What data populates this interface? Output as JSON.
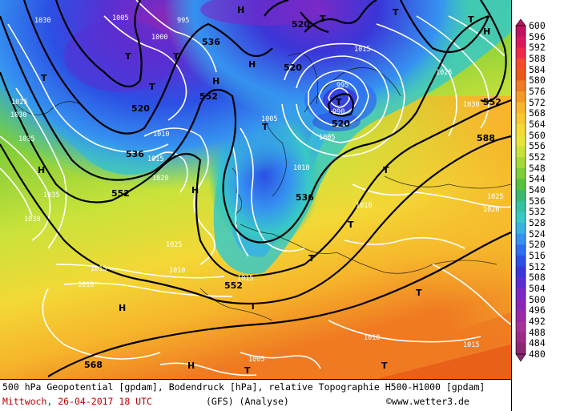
{
  "footer": {
    "line1": "500 hPa Geopotential [gpdam], Bodendruck [hPa], relative Topographie H500-H1000 [gpdam]",
    "date": "Mittwoch, 26-04-2017  18 UTC",
    "model": "(GFS)  (Analyse)",
    "copyright": "©www.wetter3.de"
  },
  "colorbar": {
    "ticks": [
      "600",
      "596",
      "592",
      "588",
      "584",
      "580",
      "576",
      "572",
      "568",
      "564",
      "560",
      "556",
      "552",
      "548",
      "544",
      "540",
      "536",
      "532",
      "528",
      "524",
      "520",
      "516",
      "512",
      "508",
      "504",
      "500",
      "496",
      "492",
      "488",
      "484",
      "480"
    ],
    "colors": [
      "#c0125e",
      "#d8195d",
      "#ee2a4b",
      "#f24a2a",
      "#e75a18",
      "#ef7a22",
      "#f39a25",
      "#f6b52b",
      "#f5c730",
      "#f3d836",
      "#e9e43a",
      "#c9e23a",
      "#a6d936",
      "#7fcd38",
      "#55c23e",
      "#3bb86e",
      "#35c2a0",
      "#38c9c6",
      "#38b2e3",
      "#3592f0",
      "#2e6ff0",
      "#2c50e4",
      "#3a36d8",
      "#5a2fd2",
      "#7a29c6",
      "#8b27b8",
      "#9a2aa8",
      "#a53296",
      "#9b2b84",
      "#8a2772"
    ]
  },
  "map_labels": {
    "heights_black": [
      "520",
      "536",
      "552",
      "520",
      "520",
      "552",
      "536",
      "552",
      "536",
      "552",
      "588",
      "520",
      "552",
      "568",
      "520"
    ],
    "pressure_white": [
      "1005",
      "995",
      "1000",
      "1030",
      "1025",
      "1030",
      "1035",
      "1015",
      "1010",
      "1005",
      "995",
      "990",
      "1005",
      "1010",
      "1015",
      "1025",
      "1030",
      "1035",
      "1020",
      "1030",
      "1025",
      "1015",
      "1010",
      "1015",
      "1010",
      "1020",
      "1025",
      "1010",
      "1005",
      "1010",
      "1015"
    ],
    "systems": [
      "T",
      "T",
      "H",
      "T",
      "H",
      "T",
      "T",
      "T",
      "H",
      "T",
      "H",
      "T",
      "T",
      "H",
      "T",
      "T",
      "T",
      "H",
      "T",
      "T",
      "T",
      "H",
      "H",
      "T"
    ]
  }
}
